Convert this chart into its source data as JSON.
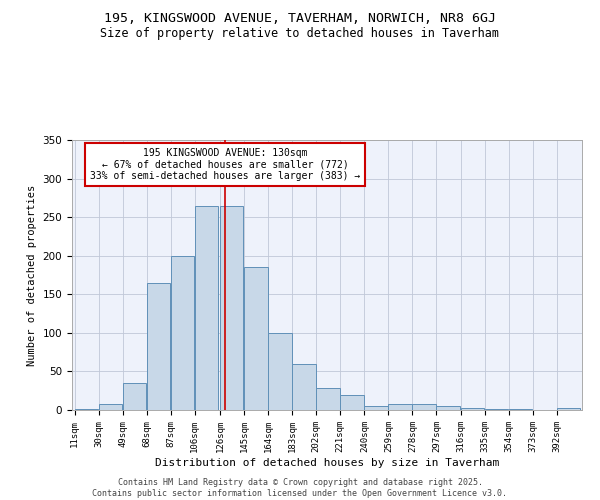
{
  "title": "195, KINGSWOOD AVENUE, TAVERHAM, NORWICH, NR8 6GJ",
  "subtitle": "Size of property relative to detached houses in Taverham",
  "xlabel": "Distribution of detached houses by size in Taverham",
  "ylabel": "Number of detached properties",
  "annotation_title": "195 KINGSWOOD AVENUE: 130sqm",
  "annotation_line1": "← 67% of detached houses are smaller (772)",
  "annotation_line2": "33% of semi-detached houses are larger (383) →",
  "property_size": 130,
  "categories": [
    "11sqm",
    "30sqm",
    "49sqm",
    "68sqm",
    "87sqm",
    "106sqm",
    "126sqm",
    "145sqm",
    "164sqm",
    "183sqm",
    "202sqm",
    "221sqm",
    "240sqm",
    "259sqm",
    "278sqm",
    "297sqm",
    "316sqm",
    "335sqm",
    "354sqm",
    "373sqm",
    "392sqm"
  ],
  "bar_edges": [
    11,
    30,
    49,
    68,
    87,
    106,
    126,
    145,
    164,
    183,
    202,
    221,
    240,
    259,
    278,
    297,
    316,
    335,
    354,
    373,
    392
  ],
  "bar_heights": [
    1,
    8,
    35,
    165,
    200,
    265,
    265,
    185,
    100,
    60,
    28,
    20,
    5,
    8,
    8,
    5,
    3,
    1,
    1,
    0,
    3
  ],
  "bar_color": "#c8d8e8",
  "bar_edge_color": "#6090b8",
  "vline_color": "#cc0000",
  "vline_x": 130,
  "annotation_box_color": "#ffffff",
  "annotation_box_edge": "#cc0000",
  "bg_color": "#eef2fb",
  "grid_color": "#c0c8d8",
  "footer": "Contains HM Land Registry data © Crown copyright and database right 2025.\nContains public sector information licensed under the Open Government Licence v3.0.",
  "ylim": [
    0,
    350
  ],
  "yticks": [
    0,
    50,
    100,
    150,
    200,
    250,
    300,
    350
  ]
}
